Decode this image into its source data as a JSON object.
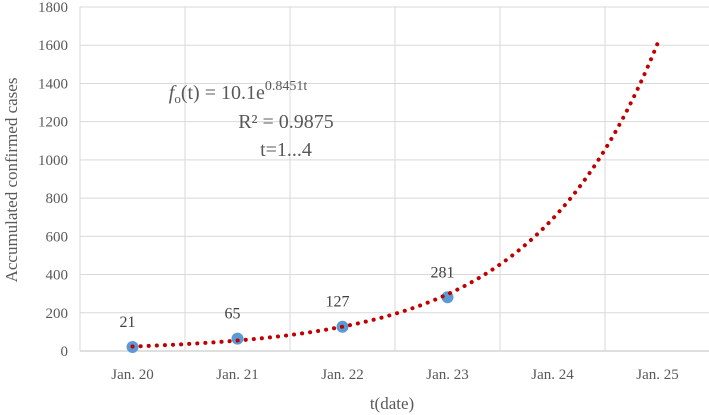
{
  "chart_data": {
    "type": "scatter",
    "xlabel": "t(date)",
    "ylabel": "Accumulated confirmed cases",
    "categories": [
      "Jan. 20",
      "Jan. 21",
      "Jan. 22",
      "Jan. 23",
      "Jan. 24",
      "Jan. 25"
    ],
    "ylim": [
      0,
      1800
    ],
    "yticks": [
      "0",
      "200",
      "400",
      "600",
      "800",
      "1000",
      "1200",
      "1400",
      "1600",
      "1800"
    ],
    "grid": true,
    "series": [
      {
        "x": [
          "Jan. 20",
          "Jan. 21",
          "Jan. 22",
          "Jan. 23"
        ],
        "values": [
          21,
          65,
          127,
          281
        ],
        "labels": [
          "21",
          "65",
          "127",
          "281"
        ],
        "color": "#5b9bd5"
      }
    ],
    "trendline": {
      "type": "exponential",
      "a": 10.1,
      "b": 0.8451,
      "color": "#c00000",
      "style": "dotted",
      "equation_lines": {
        "f_name": "f",
        "f_sub": "o",
        "f_rest": "(t) = 10.1e",
        "exponent": "0.8451t",
        "r2": "R² = 0.9875",
        "range": "t=1...4"
      }
    }
  }
}
